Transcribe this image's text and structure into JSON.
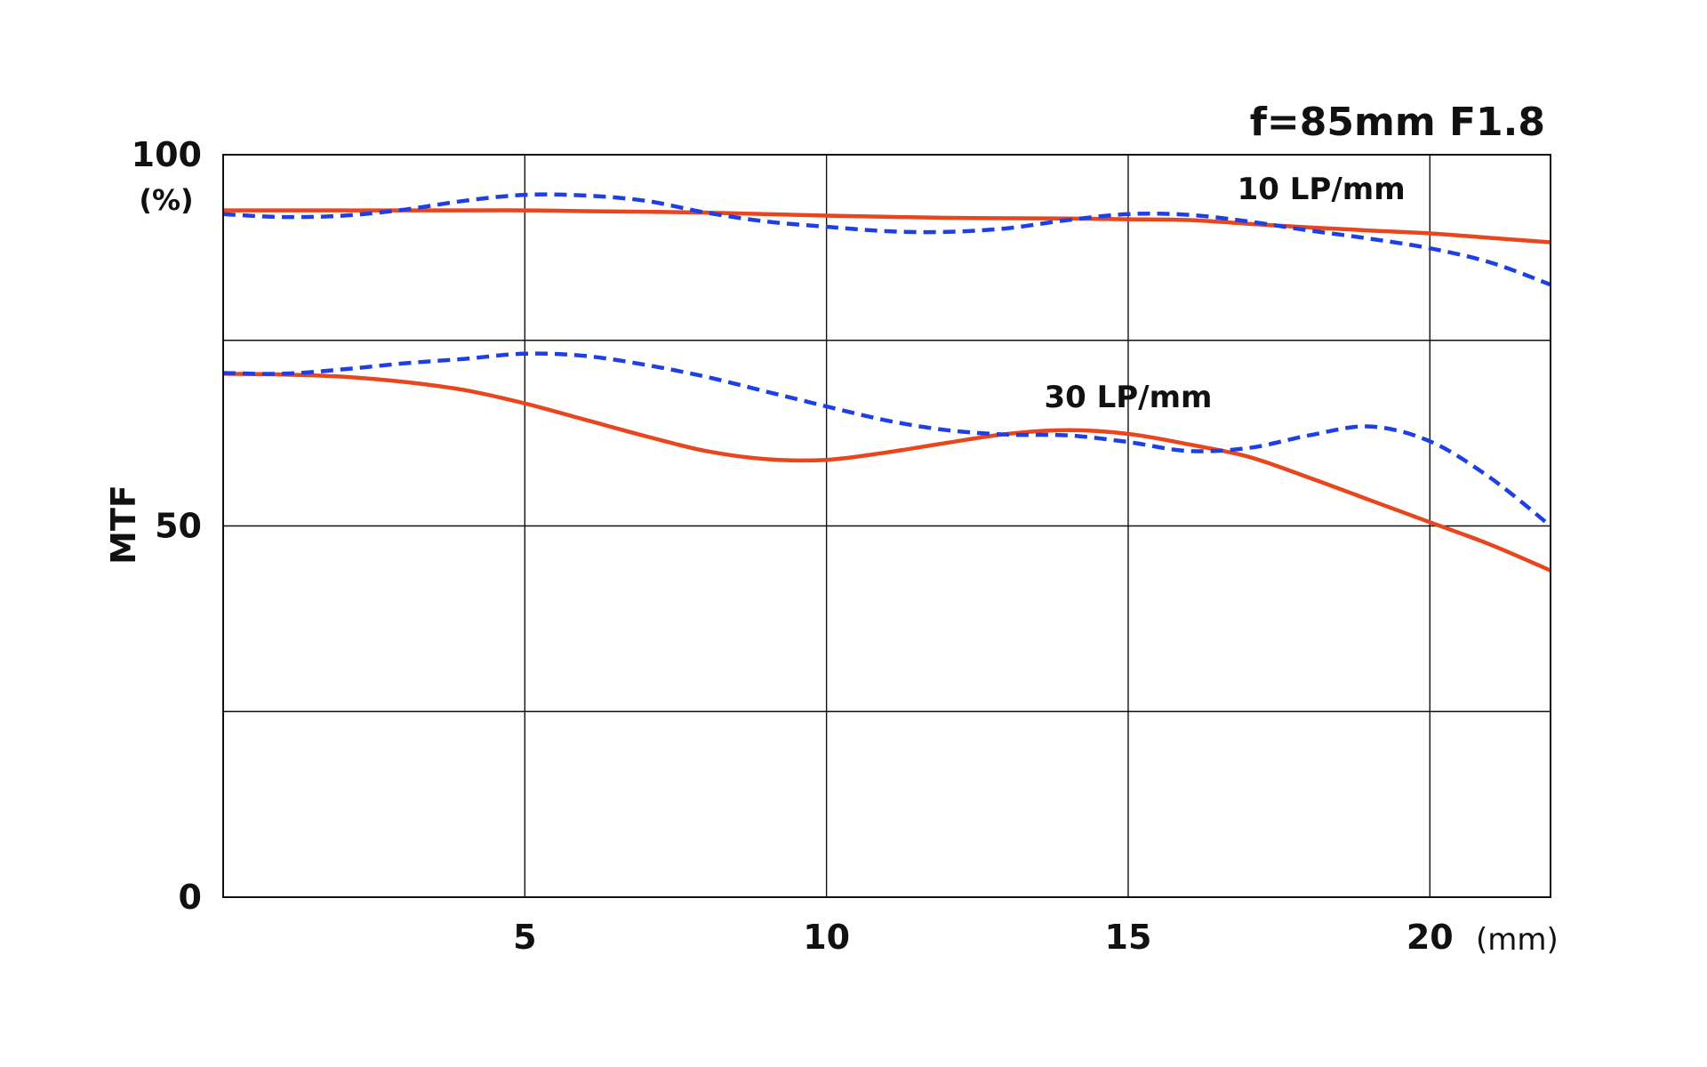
{
  "chart_data": {
    "type": "line",
    "title": "f=85mm F1.8",
    "xlabel": "",
    "x_unit": "(mm)",
    "ylabel": "MTF",
    "y_unit": "(%)",
    "xlim": [
      0,
      22
    ],
    "ylim": [
      0,
      100
    ],
    "x_ticks": [
      5,
      10,
      15,
      20
    ],
    "x_tick_labels": [
      "5",
      "10",
      "15",
      "20"
    ],
    "y_tick_labels": [
      {
        "value": 100,
        "label": "100"
      },
      {
        "value": 50,
        "label": "50"
      },
      {
        "value": 0,
        "label": "0"
      }
    ],
    "y_gridlines": [
      25,
      50,
      75
    ],
    "grid": true,
    "annotations": [
      {
        "text": "10 LP/mm",
        "x": 18.2,
        "y": 94
      },
      {
        "text": "30 LP/mm",
        "x": 15.0,
        "y": 66
      }
    ],
    "colors": {
      "solid": "#e8461e",
      "dashed": "#1f3fe6",
      "axis": "#111111",
      "grid": "#111111"
    },
    "series": [
      {
        "group": "10 LP/mm",
        "style": "solid",
        "x": [
          0,
          2,
          4,
          5,
          6,
          8,
          10,
          12,
          14,
          15,
          16,
          17,
          18,
          19,
          20,
          21,
          22
        ],
        "y": [
          92.5,
          92.5,
          92.5,
          92.5,
          92.4,
          92.2,
          91.8,
          91.5,
          91.4,
          91.3,
          91.2,
          90.7,
          90.2,
          89.8,
          89.4,
          88.8,
          88.2
        ]
      },
      {
        "group": "10 LP/mm",
        "style": "dashed",
        "x": [
          0,
          1,
          2,
          3,
          4,
          5,
          6,
          7,
          8,
          9,
          10,
          11,
          12,
          13,
          14,
          15,
          16,
          17,
          18,
          19,
          20,
          21,
          22
        ],
        "y": [
          92.0,
          91.6,
          91.8,
          92.6,
          93.8,
          94.6,
          94.5,
          93.8,
          92.2,
          91.0,
          90.3,
          89.7,
          89.6,
          90.1,
          91.2,
          92.0,
          91.9,
          91.0,
          89.8,
          88.7,
          87.4,
          85.5,
          82.5
        ]
      },
      {
        "group": "30 LP/mm",
        "style": "solid",
        "x": [
          0,
          1,
          2,
          3,
          4,
          5,
          6,
          7,
          8,
          9,
          10,
          11,
          12,
          13,
          14,
          15,
          16,
          17,
          18,
          19,
          20,
          21,
          22
        ],
        "y": [
          70.5,
          70.4,
          70.1,
          69.4,
          68.3,
          66.5,
          64.3,
          62.1,
          60.1,
          59.0,
          58.9,
          59.9,
          61.2,
          62.4,
          62.9,
          62.4,
          61.0,
          59.3,
          56.5,
          53.5,
          50.5,
          47.5,
          44.0
        ]
      },
      {
        "group": "30 LP/mm",
        "style": "dashed",
        "x": [
          0,
          1,
          2,
          3,
          4,
          5,
          6,
          7,
          8,
          9,
          10,
          11,
          12,
          13,
          14,
          15,
          16,
          17,
          18,
          19,
          20,
          21,
          22
        ],
        "y": [
          70.6,
          70.5,
          71.1,
          71.9,
          72.5,
          73.2,
          72.9,
          71.7,
          70.1,
          68.1,
          66.1,
          64.2,
          62.9,
          62.3,
          62.2,
          61.3,
          60.1,
          60.5,
          62.2,
          63.4,
          61.4,
          56.5,
          50.0
        ]
      }
    ]
  }
}
